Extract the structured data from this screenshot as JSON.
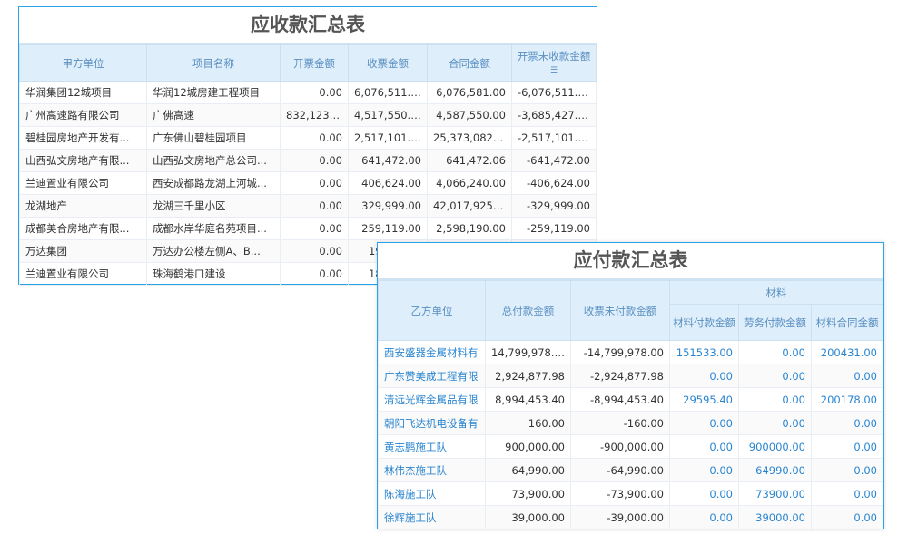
{
  "receivable": {
    "title": "应收款汇总表",
    "headers": [
      "甲方单位",
      "项目名称",
      "开票金额",
      "收票金额",
      "合同金额",
      "开票未收款金额"
    ],
    "sort_icon": "sort-icon",
    "rows": [
      [
        "华润集团12城项目",
        "华润12城房建工程项目",
        "0.00",
        "6,076,511.00",
        "6,076,581.00",
        "-6,076,511.00"
      ],
      [
        "广州高速路有限公司",
        "广佛高速",
        "832,123.00",
        "4,517,550.00",
        "4,587,550.00",
        "-3,685,427.00"
      ],
      [
        "碧桂园房地产开发有...",
        "广东佛山碧桂园项目",
        "0.00",
        "2,517,101.00",
        "25,373,082.00",
        "-2,517,101.00"
      ],
      [
        "山西弘文房地产有限...",
        "山西弘文房地产总公司...",
        "0.00",
        "641,472.00",
        "641,472.06",
        "-641,472.00"
      ],
      [
        "兰迪置业有限公司",
        "西安成都路龙湖上河城...",
        "0.00",
        "406,624.00",
        "4,066,240.00",
        "-406,624.00"
      ],
      [
        "龙湖地产",
        "龙湖三千里小区",
        "0.00",
        "329,999.00",
        "42,017,925.00",
        "-329,999.00"
      ],
      [
        "成都美合房地产有限...",
        "成都水岸华庭名苑项目...",
        "0.00",
        "259,119.00",
        "2,598,190.00",
        "-259,119.00"
      ],
      [
        "万达集团",
        "万达办公楼左侧A、B...",
        "0.00",
        "19",
        "",
        ""
      ],
      [
        "兰迪置业有限公司",
        "珠海鹤港口建设",
        "0.00",
        "18",
        "",
        ""
      ]
    ]
  },
  "payable": {
    "title": "应付款汇总表",
    "headers": [
      "乙方单位",
      "总付款金额",
      "收票未付款金额"
    ],
    "group": "材料",
    "sub_headers": [
      "材料付款金额",
      "劳务付款金额",
      "材料合同金额"
    ],
    "rows": [
      [
        "西安盛器金属材料有",
        "14,799,978.00",
        "-14,799,978.00",
        "151533.00",
        "0.00",
        "200431.00"
      ],
      [
        "广东赞美成工程有限",
        "2,924,877.98",
        "-2,924,877.98",
        "0.00",
        "0.00",
        "0.00"
      ],
      [
        "清远光辉金属品有限",
        "8,994,453.40",
        "-8,994,453.40",
        "29595.40",
        "0.00",
        "200178.00"
      ],
      [
        "朝阳飞达机电设备有",
        "160.00",
        "-160.00",
        "0.00",
        "0.00",
        "0.00"
      ],
      [
        "黄志鹏施工队",
        "900,000.00",
        "-900,000.00",
        "0.00",
        "900000.00",
        "0.00"
      ],
      [
        "林伟杰施工队",
        "64,990.00",
        "-64,990.00",
        "0.00",
        "64990.00",
        "0.00"
      ],
      [
        "陈海施工队",
        "73,900.00",
        "-73,900.00",
        "0.00",
        "73900.00",
        "0.00"
      ],
      [
        "徐辉施工队",
        "39,000.00",
        "-39,000.00",
        "0.00",
        "39000.00",
        "0.00"
      ]
    ]
  },
  "colors": {
    "border": "#29a3e6",
    "header_bg": "#deeefb",
    "header_text": "#5a8fc0",
    "link": "#2a85d0"
  }
}
